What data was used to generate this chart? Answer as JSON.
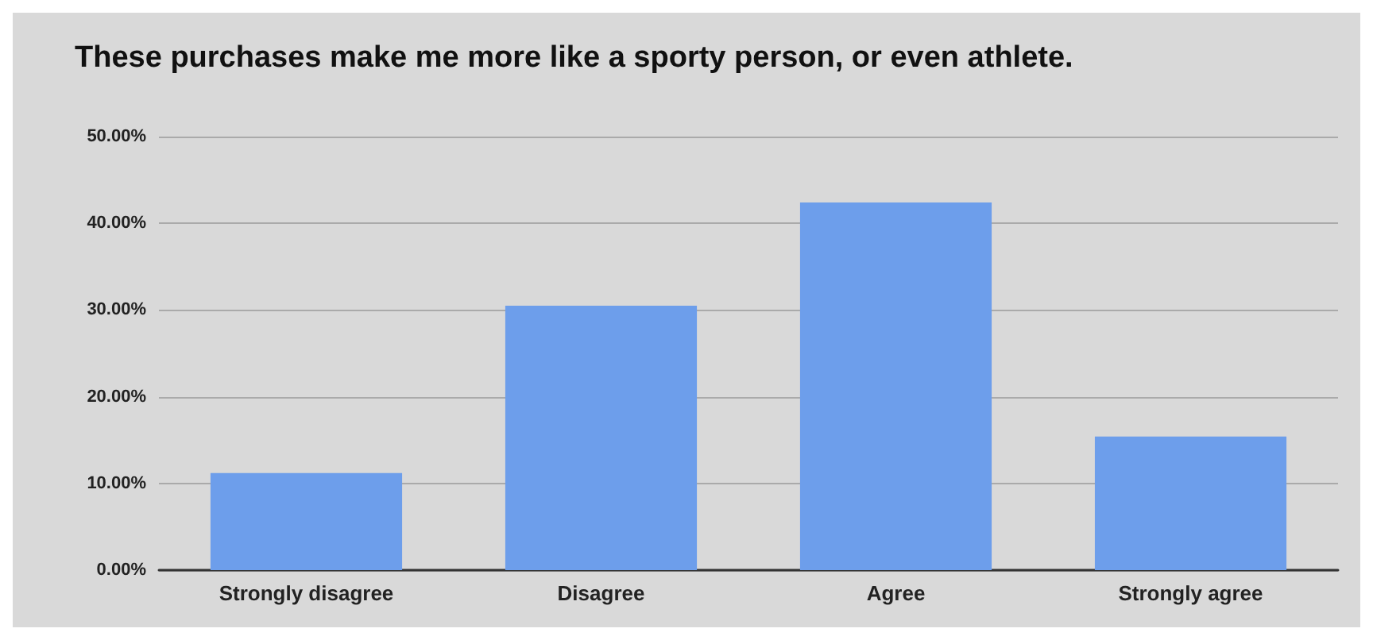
{
  "chart_data": {
    "type": "bar",
    "title": "These purchases make me more like a sporty person, or even athlete.",
    "categories": [
      "Strongly disagree",
      "Disagree",
      "Agree",
      "Strongly agree"
    ],
    "values": [
      11.2,
      30.5,
      42.4,
      15.4
    ],
    "color": "#6d9eeb",
    "ylim": [
      0,
      50
    ],
    "yticks": [
      {
        "value": 0,
        "label": "0.00%"
      },
      {
        "value": 10,
        "label": "10.00%"
      },
      {
        "value": 20,
        "label": "20.00%"
      },
      {
        "value": 30,
        "label": "30.00%"
      },
      {
        "value": 40,
        "label": "40.00%"
      },
      {
        "value": 50,
        "label": "50.00%"
      }
    ],
    "grid": "y"
  }
}
